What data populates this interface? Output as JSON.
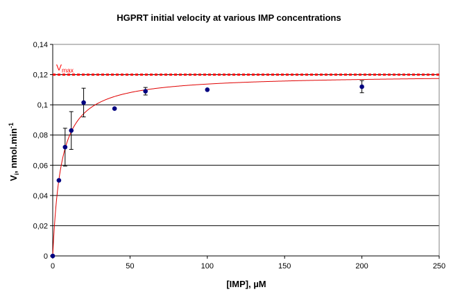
{
  "chart_data": {
    "type": "scatter",
    "title": "HGPRT initial velocity at various IMP concentrations",
    "xlabel": "[IMP], µM",
    "ylabel": {
      "base": "V",
      "sub": "i",
      "rest": ", nmol.min",
      "sup": "-1"
    },
    "xlim": [
      0,
      250
    ],
    "ylim": [
      0,
      0.14
    ],
    "x_ticks": [
      0,
      50,
      100,
      150,
      200,
      250
    ],
    "x_tick_labels": [
      "0",
      "50",
      "100",
      "150",
      "200",
      "250"
    ],
    "y_ticks": [
      0,
      0.02,
      0.04,
      0.06,
      0.08,
      0.1,
      0.12,
      0.14
    ],
    "y_tick_labels": [
      "0",
      "0,02",
      "0,04",
      "0,06",
      "0,08",
      "0,1",
      "0,12",
      "0,14"
    ],
    "grid": "horizontal",
    "legend": "none",
    "series": [
      {
        "x": [
          0,
          4,
          8,
          12,
          20,
          40,
          60,
          100,
          200
        ],
        "y": [
          0,
          0.05,
          0.072,
          0.083,
          0.1015,
          0.0975,
          0.109,
          0.11,
          0.112
        ],
        "err": [
          0,
          0,
          0.0125,
          0.0125,
          0.0095,
          0,
          0.0025,
          0,
          0.004
        ],
        "color": "#000080"
      }
    ],
    "fit": {
      "color": "#e00000",
      "vmax": 0.12,
      "km": 5.5
    },
    "vmax_line": {
      "y": 0.12,
      "color": "#ff0000",
      "label_base": "V",
      "label_sub": "max"
    },
    "colors": {
      "plot_border": "#808080",
      "gridline": "#000000",
      "point": "#000080",
      "errorbar": "#000000"
    }
  }
}
